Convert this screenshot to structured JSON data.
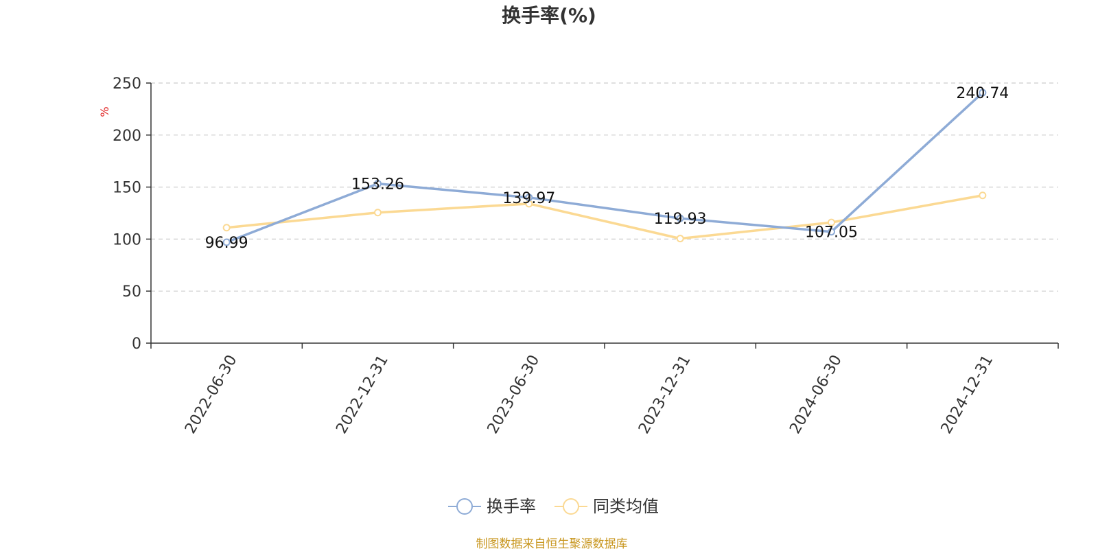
{
  "chart_data": {
    "type": "line",
    "title": "换手率(%)",
    "ylabel": "%",
    "xlabel": "",
    "ylim": [
      0,
      250
    ],
    "yticks": [
      0,
      50,
      100,
      150,
      200,
      250
    ],
    "grid": true,
    "legend_position": "bottom",
    "categories": [
      "2022-06-30",
      "2022-12-31",
      "2023-06-30",
      "2023-12-31",
      "2024-06-30",
      "2024-12-31"
    ],
    "series": [
      {
        "name": "换手率",
        "color": "#8eabd6",
        "values": [
          96.99,
          153.26,
          139.97,
          119.93,
          107.05,
          240.74
        ],
        "labels": [
          "96.99",
          "153.26",
          "139.97",
          "119.93",
          "107.05",
          "240.74"
        ]
      },
      {
        "name": "同类均值",
        "color": "#fbd993",
        "values": [
          111,
          125.5,
          134,
          100.5,
          116,
          142
        ],
        "labels": []
      }
    ],
    "source": "制图数据来自恒生聚源数据库"
  }
}
